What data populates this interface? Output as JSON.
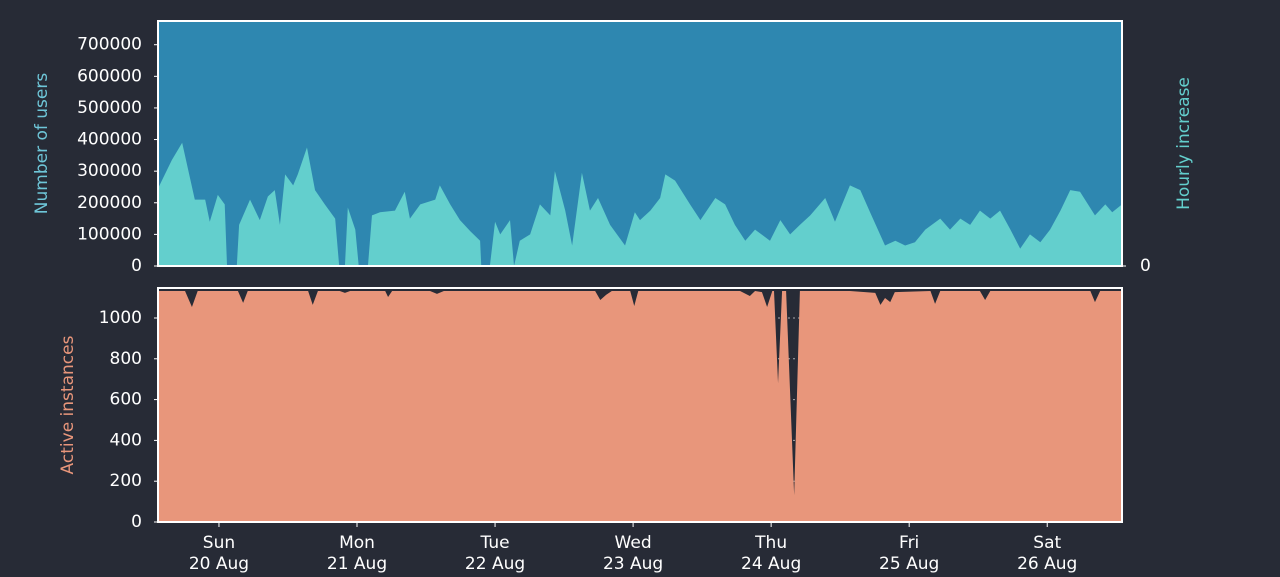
{
  "chart_data": [
    {
      "type": "area",
      "ylabel": "Number of users",
      "y2label": "Hourly increase",
      "xlim": [
        -10.6,
        157
      ],
      "ylim": [
        0,
        775000
      ],
      "yticks": [
        0,
        100000,
        200000,
        300000,
        400000,
        500000,
        600000,
        700000
      ],
      "y2lim": [
        0,
        775000
      ],
      "y2ticks": [
        0
      ],
      "series": [
        {
          "color": "#2e87b0",
          "axis": "y",
          "x": [
            -10.6,
            157
          ],
          "values": [
            775000,
            775000
          ]
        },
        {
          "color": "#63cfcd",
          "axis": "y2",
          "x": [
            -10.6,
            -8.2,
            -6.4,
            -4.2,
            -2.4,
            -1.6,
            -0.2,
            1.0,
            1.4,
            3.1,
            3.5,
            5.4,
            7.1,
            8.5,
            9.7,
            10.6,
            11.5,
            12.9,
            13.7,
            15.3,
            16.7,
            18.4,
            20.2,
            20.9,
            21.9,
            22.4,
            23.7,
            24.3,
            25.9,
            26.6,
            28.0,
            30.6,
            32.3,
            33.2,
            35.0,
            37.6,
            38.4,
            40.2,
            41.9,
            43.7,
            45.4,
            45.6,
            47.1,
            48.0,
            48.9,
            50.6,
            51.3,
            52.3,
            54.1,
            55.8,
            57.6,
            58.4,
            60.2,
            61.4,
            63.1,
            64.5,
            65.9,
            68.0,
            70.6,
            72.3,
            73.2,
            75.0,
            76.7,
            77.6,
            79.3,
            81.9,
            83.7,
            86.3,
            88.0,
            89.7,
            91.5,
            93.2,
            95.8,
            97.6,
            99.3,
            101.0,
            102.8,
            105.4,
            107.1,
            109.7,
            111.5,
            113.2,
            115.8,
            117.6,
            119.3,
            121.0,
            122.8,
            125.4,
            127.1,
            128.9,
            130.6,
            132.3,
            134.1,
            135.8,
            137.6,
            139.3,
            141.0,
            142.8,
            144.5,
            146.3,
            148.0,
            149.7,
            152.3,
            154.1,
            155.3,
            157.0
          ],
          "values": [
            245000,
            335000,
            390000,
            210000,
            210000,
            140000,
            225000,
            195000,
            0,
            0,
            130000,
            210000,
            145000,
            220000,
            240000,
            130000,
            290000,
            255000,
            290000,
            375000,
            240000,
            195000,
            150000,
            0,
            0,
            185000,
            115000,
            0,
            0,
            160000,
            170000,
            175000,
            235000,
            150000,
            195000,
            210000,
            255000,
            195000,
            145000,
            110000,
            80000,
            0,
            0,
            140000,
            100000,
            145000,
            0,
            80000,
            100000,
            195000,
            160000,
            300000,
            175000,
            65000,
            295000,
            175000,
            215000,
            130000,
            65000,
            170000,
            145000,
            175000,
            215000,
            290000,
            270000,
            195000,
            145000,
            215000,
            195000,
            130000,
            80000,
            115000,
            80000,
            145000,
            100000,
            130000,
            160000,
            215000,
            140000,
            255000,
            240000,
            170000,
            65000,
            80000,
            65000,
            75000,
            115000,
            150000,
            115000,
            150000,
            130000,
            175000,
            150000,
            175000,
            115000,
            55000,
            100000,
            75000,
            115000,
            175000,
            240000,
            235000,
            160000,
            195000,
            170000,
            195000
          ]
        }
      ]
    },
    {
      "type": "area",
      "ylabel": "Active instances",
      "xlim": [
        -10.6,
        157
      ],
      "xticks": [
        {
          "value": 0,
          "label": "Sun\n20 Aug"
        },
        {
          "value": 24,
          "label": "Mon\n21 Aug"
        },
        {
          "value": 48,
          "label": "Tue\n22 Aug"
        },
        {
          "value": 72,
          "label": "Wed\n23 Aug"
        },
        {
          "value": 96,
          "label": "Thu\n24 Aug"
        },
        {
          "value": 120,
          "label": "Fri\n25 Aug"
        },
        {
          "value": 144,
          "label": "Sat\n26 Aug"
        }
      ],
      "ylim": [
        0,
        1147
      ],
      "yticks": [
        0,
        200,
        400,
        600,
        800,
        1000
      ],
      "grid": true,
      "series": [
        {
          "color": "#e8967b",
          "axis": "y",
          "x": [
            -10.6,
            -5.9,
            -4.7,
            -3.7,
            3.3,
            4.2,
            5.0,
            15.5,
            16.3,
            17.2,
            21.0,
            21.9,
            22.8,
            28.9,
            29.4,
            30.1,
            36.7,
            37.9,
            39.1,
            65.4,
            66.3,
            67.3,
            68.3,
            71.5,
            72.2,
            72.9,
            83.7,
            90.6,
            92.3,
            93.2,
            94.4,
            95.3,
            96.2,
            96.5,
            97.2,
            97.9,
            98.6,
            100.0,
            101.0,
            109.7,
            114.1,
            115.0,
            115.8,
            116.7,
            117.5,
            123.7,
            124.5,
            125.4,
            132.3,
            133.2,
            134.1,
            151.5,
            152.3,
            153.2,
            157.0
          ],
          "values": [
            1132,
            1132,
            1054,
            1132,
            1132,
            1074,
            1132,
            1132,
            1064,
            1132,
            1132,
            1123,
            1132,
            1132,
            1103,
            1132,
            1132,
            1118,
            1132,
            1132,
            1088,
            1113,
            1132,
            1132,
            1059,
            1132,
            1132,
            1132,
            1108,
            1132,
            1127,
            1054,
            1132,
            1132,
            681,
            1132,
            1132,
            132,
            1132,
            1132,
            1123,
            1064,
            1098,
            1078,
            1127,
            1132,
            1069,
            1132,
            1132,
            1088,
            1132,
            1132,
            1078,
            1132,
            1132
          ]
        }
      ]
    }
  ]
}
